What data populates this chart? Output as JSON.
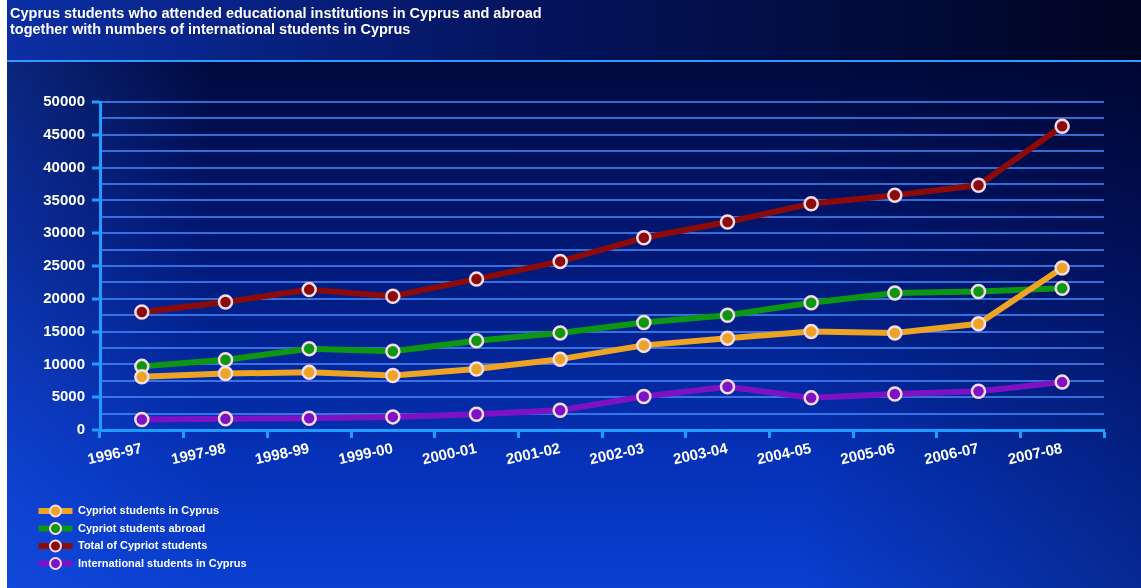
{
  "chart_data": {
    "type": "line",
    "title": "Cyprus students who attended educational institutions in Cyprus and abroad together with numbers of international students in Cyprus",
    "categories": [
      "1996-97",
      "1997-98",
      "1998-99",
      "1999-00",
      "2000-01",
      "2001-02",
      "2002-03",
      "2003-04",
      "2004-05",
      "2005-06",
      "2006-07",
      "2007-08"
    ],
    "series": [
      {
        "name": "Cypriot students in Cyprus",
        "color": "#eda323",
        "values": [
          8100,
          8600,
          8800,
          8300,
          9300,
          10800,
          12900,
          14000,
          15000,
          14800,
          16200,
          24700
        ]
      },
      {
        "name": "Cypriot students abroad",
        "color": "#0c9612",
        "values": [
          9700,
          10700,
          12400,
          12000,
          13600,
          14800,
          16400,
          17500,
          19400,
          20900,
          21100,
          21600
        ]
      },
      {
        "name": "Total of Cypriot students",
        "color": "#8c0a0a",
        "values": [
          18000,
          19500,
          21400,
          20400,
          23000,
          25700,
          29300,
          31700,
          34500,
          35800,
          37300,
          46300
        ]
      },
      {
        "name": "International students in Cyprus",
        "color": "#7d12c4",
        "values": [
          1600,
          1700,
          1800,
          2000,
          2400,
          3000,
          5100,
          6600,
          4900,
          5500,
          5900,
          7300
        ]
      }
    ],
    "ylim": [
      0,
      50000
    ],
    "yticks": [
      0,
      {
        "value": 2500,
        "label": null
      },
      5000,
      {
        "value": 7500,
        "label": null
      },
      10000,
      {
        "value": 12500,
        "label": null
      },
      15000,
      {
        "value": 17500,
        "label": null
      },
      20000,
      {
        "value": 22500,
        "label": null
      },
      25000,
      {
        "value": 27500,
        "label": null
      },
      30000,
      {
        "value": 32500,
        "label": null
      },
      35000,
      {
        "value": 37500,
        "label": null
      },
      40000,
      {
        "value": 42500,
        "label": null
      },
      45000,
      {
        "value": 47500,
        "label": null
      },
      50000
    ],
    "grid": "y",
    "legend": "bottom left",
    "marker": "circle"
  }
}
